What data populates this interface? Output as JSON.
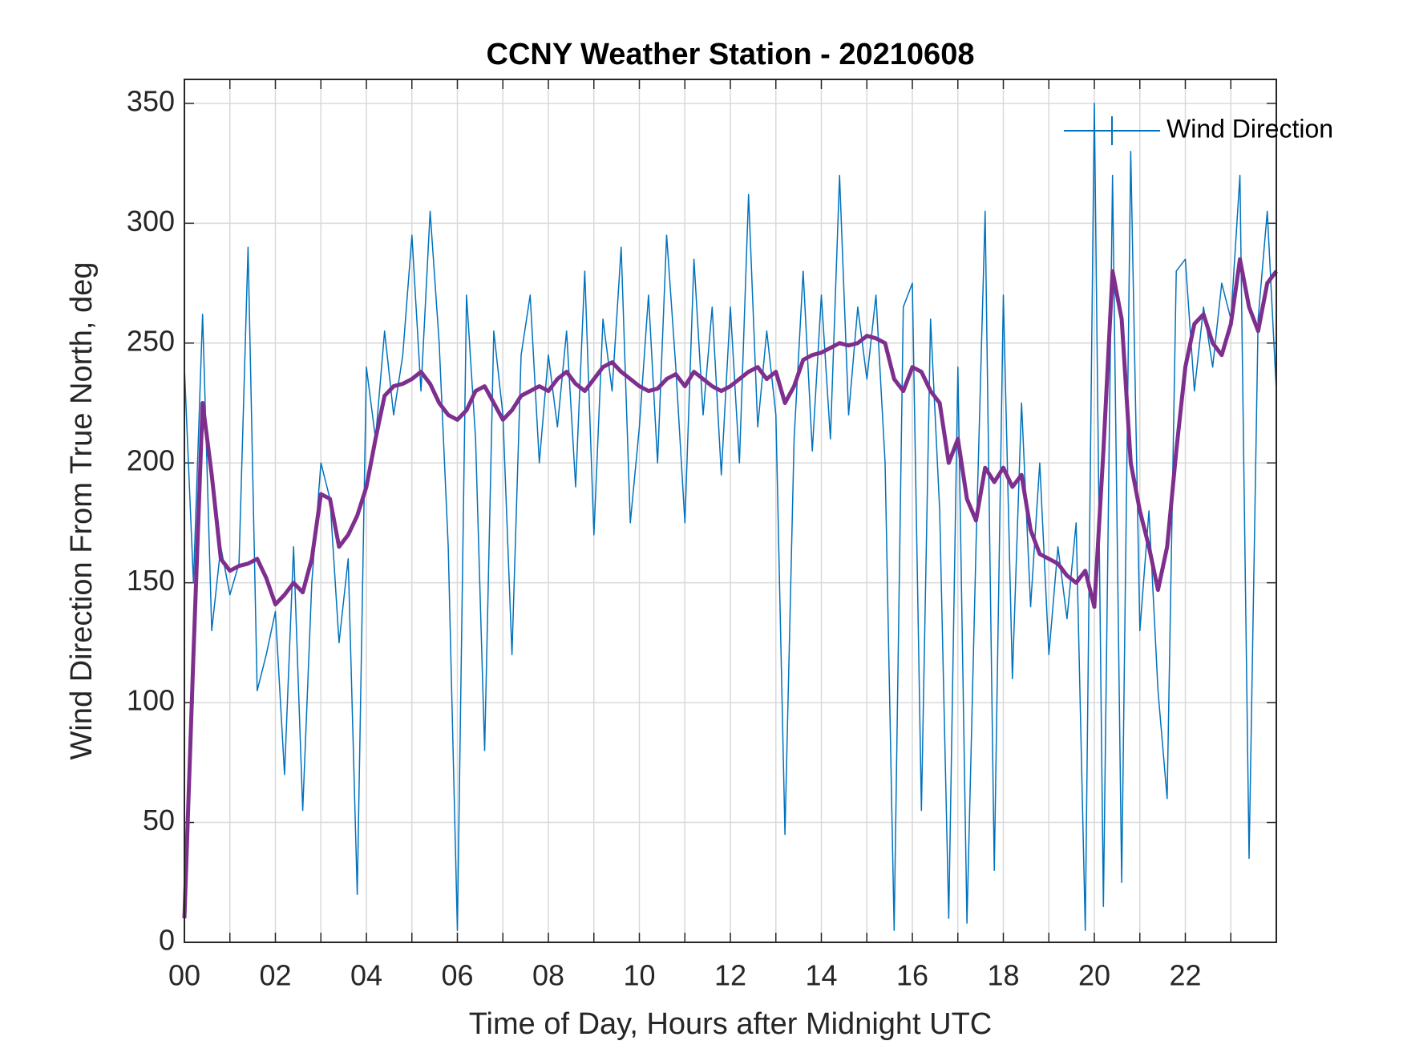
{
  "chart_data": {
    "type": "line",
    "title": "CCNY Weather Station - 20210608",
    "xlabel": "Time of Day, Hours after Midnight UTC",
    "ylabel": "Wind Direction From True North, deg",
    "x": [
      0,
      0.2,
      0.4,
      0.6,
      0.8,
      1,
      1.2,
      1.4,
      1.6,
      1.8,
      2,
      2.2,
      2.4,
      2.6,
      2.8,
      3,
      3.2,
      3.4,
      3.6,
      3.8,
      4,
      4.2,
      4.4,
      4.6,
      4.8,
      5,
      5.2,
      5.4,
      5.6,
      5.8,
      6,
      6.2,
      6.4,
      6.6,
      6.8,
      7,
      7.2,
      7.4,
      7.6,
      7.8,
      8,
      8.2,
      8.4,
      8.6,
      8.8,
      9,
      9.2,
      9.4,
      9.6,
      9.8,
      10,
      10.2,
      10.4,
      10.6,
      10.8,
      11,
      11.2,
      11.4,
      11.6,
      11.8,
      12,
      12.2,
      12.4,
      12.6,
      12.8,
      13,
      13.2,
      13.4,
      13.6,
      13.8,
      14,
      14.2,
      14.4,
      14.6,
      14.8,
      15,
      15.2,
      15.4,
      15.6,
      15.8,
      16,
      16.2,
      16.4,
      16.6,
      16.8,
      17,
      17.2,
      17.4,
      17.6,
      17.8,
      18,
      18.2,
      18.4,
      18.6,
      18.8,
      19,
      19.2,
      19.4,
      19.6,
      19.8,
      20,
      20.2,
      20.4,
      20.6,
      20.8,
      21,
      21.2,
      21.4,
      21.6,
      21.8,
      22,
      22.2,
      22.4,
      22.6,
      22.8,
      23,
      23.2,
      23.4,
      23.6,
      23.8,
      24
    ],
    "series": [
      {
        "name": "Wind Direction",
        "color": "#0072bd",
        "width": 1.5,
        "values": [
          240,
          150,
          262,
          130,
          165,
          145,
          158,
          290,
          105,
          120,
          138,
          70,
          165,
          55,
          150,
          200,
          185,
          125,
          160,
          20,
          240,
          210,
          255,
          220,
          245,
          295,
          230,
          305,
          250,
          165,
          5,
          270,
          210,
          80,
          255,
          220,
          120,
          245,
          270,
          200,
          245,
          215,
          255,
          190,
          280,
          170,
          260,
          230,
          290,
          175,
          215,
          270,
          200,
          295,
          240,
          175,
          285,
          220,
          265,
          195,
          265,
          200,
          312,
          215,
          255,
          220,
          45,
          210,
          280,
          205,
          270,
          210,
          320,
          220,
          265,
          235,
          270,
          200,
          5,
          265,
          275,
          55,
          260,
          180,
          10,
          240,
          8,
          165,
          305,
          30,
          270,
          110,
          225,
          140,
          200,
          120,
          165,
          135,
          175,
          5,
          350,
          15,
          320,
          25,
          330,
          130,
          180,
          105,
          60,
          280,
          285,
          230,
          265,
          240,
          275,
          260,
          320,
          35,
          260,
          305,
          230
        ]
      },
      {
        "color": "#7e2f8e",
        "width": 5,
        "values": [
          10,
          120,
          225,
          195,
          160,
          155,
          157,
          158,
          160,
          152,
          141,
          145,
          150,
          146,
          160,
          187,
          185,
          165,
          170,
          178,
          190,
          210,
          228,
          232,
          233,
          235,
          238,
          233,
          225,
          220,
          218,
          222,
          230,
          232,
          225,
          218,
          222,
          228,
          230,
          232,
          230,
          235,
          238,
          233,
          230,
          235,
          240,
          242,
          238,
          235,
          232,
          230,
          231,
          235,
          237,
          232,
          238,
          235,
          232,
          230,
          232,
          235,
          238,
          240,
          235,
          238,
          225,
          232,
          243,
          245,
          246,
          248,
          250,
          249,
          250,
          253,
          252,
          250,
          235,
          230,
          240,
          238,
          230,
          225,
          200,
          210,
          185,
          176,
          198,
          192,
          198,
          190,
          195,
          172,
          162,
          160,
          158,
          153,
          150,
          155,
          140,
          205,
          280,
          260,
          200,
          180,
          165,
          147,
          165,
          205,
          240,
          258,
          262,
          250,
          245,
          258,
          285,
          265,
          255,
          275,
          280
        ]
      }
    ],
    "xlim": [
      0,
      24
    ],
    "xticks": [
      {
        "value": 0,
        "label": "00"
      },
      {
        "value": 2,
        "label": "02"
      },
      {
        "value": 4,
        "label": "04"
      },
      {
        "value": 6,
        "label": "06"
      },
      {
        "value": 8,
        "label": "08"
      },
      {
        "value": 10,
        "label": "10"
      },
      {
        "value": 12,
        "label": "12"
      },
      {
        "value": 14,
        "label": "14"
      },
      {
        "value": 16,
        "label": "16"
      },
      {
        "value": 18,
        "label": "18"
      },
      {
        "value": 20,
        "label": "20"
      },
      {
        "value": 22,
        "label": "22"
      }
    ],
    "xminor_ticks": [
      1,
      3,
      5,
      7,
      9,
      11,
      13,
      15,
      17,
      19,
      21,
      23
    ],
    "ylim": [
      0,
      360
    ],
    "yticks": [
      0,
      50,
      100,
      150,
      200,
      250,
      300,
      350
    ],
    "grid": true,
    "legend": "upper right"
  }
}
